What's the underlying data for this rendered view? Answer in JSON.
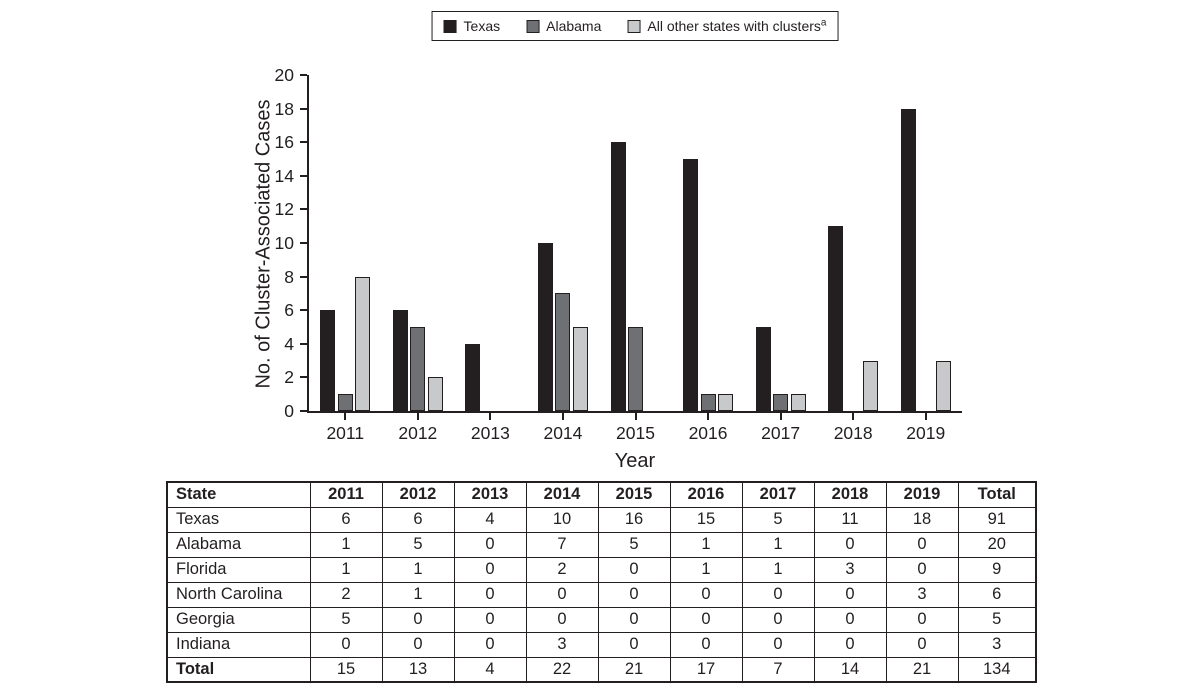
{
  "figure": {
    "background": "#ffffff",
    "text_color": "#231f20"
  },
  "chart_data": {
    "type": "bar",
    "title": "",
    "xlabel": "Year",
    "ylabel": "No. of Cluster-Associated Cases",
    "ylim": [
      0,
      20
    ],
    "ytick_step": 2,
    "grid": false,
    "legend_position": "top-center",
    "categories": [
      "2011",
      "2012",
      "2013",
      "2014",
      "2015",
      "2016",
      "2017",
      "2018",
      "2019"
    ],
    "series": [
      {
        "name": "Texas",
        "superscript": "",
        "color": "#231f20",
        "values": [
          6,
          6,
          4,
          10,
          16,
          15,
          5,
          11,
          18
        ]
      },
      {
        "name": "Alabama",
        "superscript": "",
        "color": "#6f7073",
        "values": [
          1,
          5,
          0,
          7,
          5,
          1,
          1,
          0,
          0
        ]
      },
      {
        "name": "All other states with clusters",
        "superscript": "a",
        "color": "#c8c9cb",
        "values": [
          8,
          2,
          0,
          5,
          0,
          1,
          1,
          3,
          3
        ]
      }
    ]
  },
  "table": {
    "columns": [
      "State",
      "2011",
      "2012",
      "2013",
      "2014",
      "2015",
      "2016",
      "2017",
      "2018",
      "2019",
      "Total"
    ],
    "rows": [
      {
        "label": "Texas",
        "bold": false,
        "values": [
          6,
          6,
          4,
          10,
          16,
          15,
          5,
          11,
          18,
          91
        ]
      },
      {
        "label": "Alabama",
        "bold": false,
        "values": [
          1,
          5,
          0,
          7,
          5,
          1,
          1,
          0,
          0,
          20
        ]
      },
      {
        "label": "Florida",
        "bold": false,
        "values": [
          1,
          1,
          0,
          2,
          0,
          1,
          1,
          3,
          0,
          9
        ]
      },
      {
        "label": "North Carolina",
        "bold": false,
        "values": [
          2,
          1,
          0,
          0,
          0,
          0,
          0,
          0,
          3,
          6
        ]
      },
      {
        "label": "Georgia",
        "bold": false,
        "values": [
          5,
          0,
          0,
          0,
          0,
          0,
          0,
          0,
          0,
          5
        ]
      },
      {
        "label": "Indiana",
        "bold": false,
        "values": [
          0,
          0,
          0,
          3,
          0,
          0,
          0,
          0,
          0,
          3
        ]
      },
      {
        "label": "Total",
        "bold": true,
        "values": [
          15,
          13,
          4,
          22,
          21,
          17,
          7,
          14,
          21,
          134
        ]
      }
    ]
  }
}
